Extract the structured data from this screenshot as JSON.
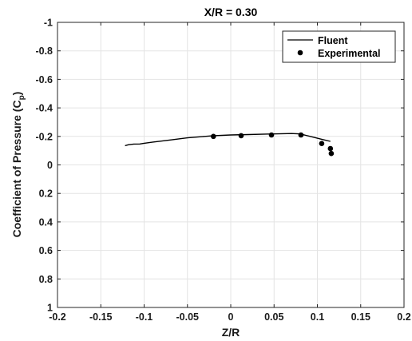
{
  "chart_data": {
    "type": "line",
    "title": "X/R = 0.30",
    "xlabel": "Z/R",
    "ylabel_main": "Coefficient of Pressure (C",
    "ylabel_sub": "p",
    "ylabel_close": ")",
    "xlim": [
      -0.2,
      0.2
    ],
    "ylim": [
      -1,
      1
    ],
    "y_reversed": true,
    "grid": true,
    "legend_position": "top-right",
    "x_ticks": [
      -0.2,
      -0.15,
      -0.1,
      -0.05,
      0,
      0.05,
      0.1,
      0.15,
      0.2
    ],
    "x_tick_labels": [
      "-0.2",
      "-0.15",
      "-0.1",
      "-0.05",
      "0",
      "0.05",
      "0.1",
      "0.15",
      "0.2"
    ],
    "y_ticks": [
      -1,
      -0.8,
      -0.6,
      -0.4,
      -0.2,
      0,
      0.2,
      0.4,
      0.6,
      0.8,
      1
    ],
    "y_tick_labels": [
      "-1",
      "-0.8",
      "-0.6",
      "-0.4",
      "-0.2",
      "0",
      "0.2",
      "0.4",
      "0.6",
      "0.8",
      "1"
    ],
    "series": [
      {
        "name": "Fluent",
        "style": "line",
        "color": "#000000",
        "x": [
          -0.122,
          -0.118,
          -0.112,
          -0.105,
          -0.1,
          -0.09,
          -0.07,
          -0.05,
          -0.03,
          -0.02,
          0.0,
          0.02,
          0.04,
          0.06,
          0.07,
          0.078,
          0.085,
          0.095,
          0.105,
          0.115
        ],
        "y": [
          -0.135,
          -0.142,
          -0.146,
          -0.147,
          -0.152,
          -0.16,
          -0.175,
          -0.19,
          -0.2,
          -0.205,
          -0.21,
          -0.213,
          -0.216,
          -0.219,
          -0.22,
          -0.218,
          -0.21,
          -0.195,
          -0.18,
          -0.165
        ]
      },
      {
        "name": "Experimental",
        "style": "markers",
        "color": "#000000",
        "x": [
          -0.02,
          0.012,
          0.047,
          0.081,
          0.105,
          0.115,
          0.116
        ],
        "y": [
          -0.2,
          -0.205,
          -0.21,
          -0.21,
          -0.15,
          -0.115,
          -0.08
        ]
      }
    ]
  }
}
